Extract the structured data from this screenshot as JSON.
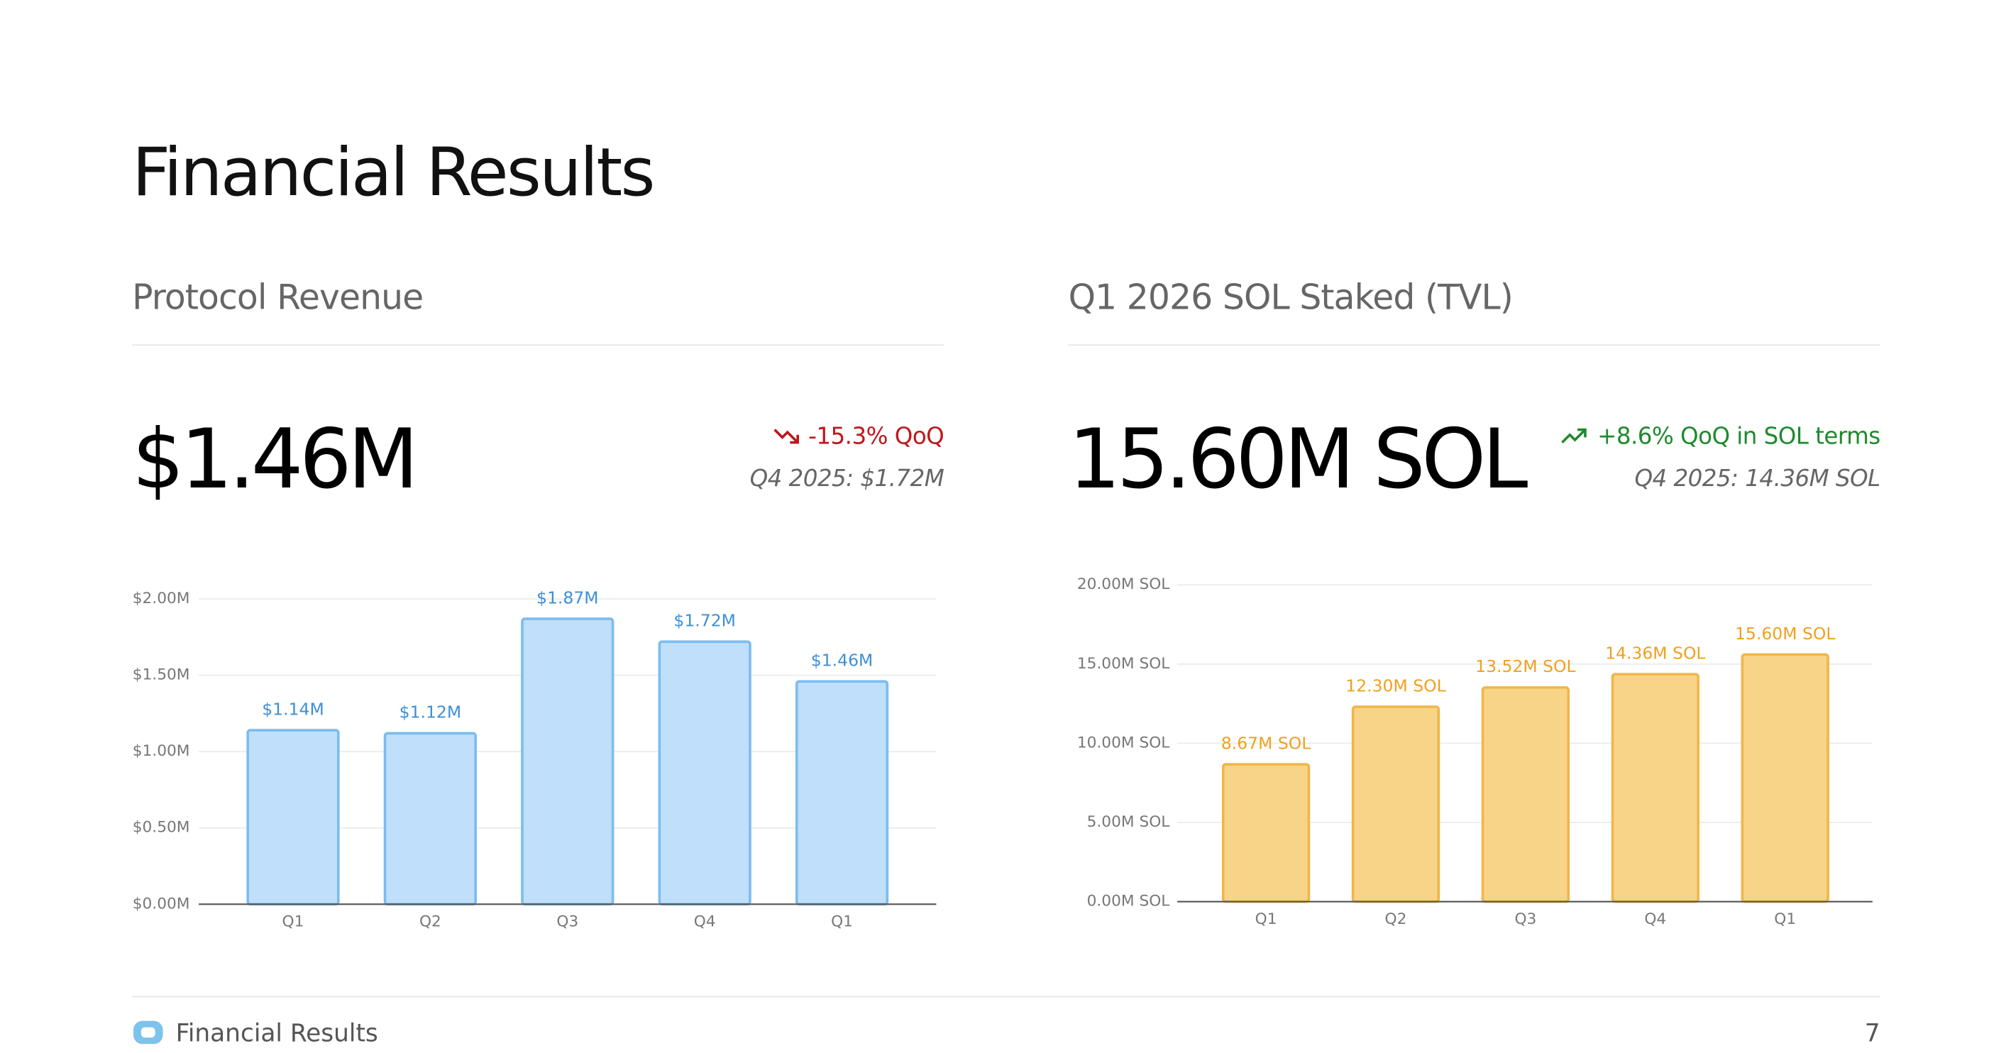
{
  "title": "Financial Results",
  "panels": [
    {
      "heading": "Protocol Revenue",
      "value": "$1.46M",
      "change": "-15.3% QoQ",
      "previous": "Q4 2025: $1.72M"
    },
    {
      "heading": "Q1 2026 SOL Staked (TVL)",
      "value": "15.60M SOL",
      "change": "+8.6% QoQ in SOL terms",
      "previous": "Q4 2025: 14.36M SOL"
    }
  ],
  "footer": {
    "label": "Financial Results",
    "page": "7"
  },
  "chart_data": [
    {
      "type": "bar",
      "categories": [
        "Q1",
        "Q2",
        "Q3",
        "Q4",
        "Q1"
      ],
      "values": [
        1.14,
        1.12,
        1.87,
        1.72,
        1.46
      ],
      "value_labels": [
        "$1.14M",
        "$1.12M",
        "$1.87M",
        "$1.72M",
        "$1.46M"
      ],
      "color": "#bfdffa",
      "edge_color": "#7cbcef",
      "label_color": "#3d8fd6",
      "ylim": [
        0,
        2
      ],
      "yticks": [
        {
          "value": 0,
          "label": "$0.00M"
        },
        {
          "value": 0.5,
          "label": "$0.50M"
        },
        {
          "value": 1,
          "label": "$1.00M"
        },
        {
          "value": 1.5,
          "label": "$1.50M"
        },
        {
          "value": 2,
          "label": "$2.00M"
        }
      ],
      "grid": true
    },
    {
      "type": "bar",
      "categories": [
        "Q1",
        "Q2",
        "Q3",
        "Q4",
        "Q1"
      ],
      "values": [
        8.67,
        12.3,
        13.52,
        14.36,
        15.6
      ],
      "value_labels": [
        "8.67M SOL",
        "12.30M SOL",
        "13.52M SOL",
        "14.36M SOL",
        "15.60M SOL"
      ],
      "color": "#f8d488",
      "edge_color": "#f0b64a",
      "label_color": "#f0a020",
      "ylim": [
        0,
        20
      ],
      "yticks": [
        {
          "value": 0,
          "label": "0.00M SOL"
        },
        {
          "value": 5,
          "label": "5.00M SOL"
        },
        {
          "value": 10,
          "label": "10.00M SOL"
        },
        {
          "value": 15,
          "label": "15.00M SOL"
        },
        {
          "value": 20,
          "label": "20.00M SOL"
        }
      ],
      "grid": true
    }
  ]
}
